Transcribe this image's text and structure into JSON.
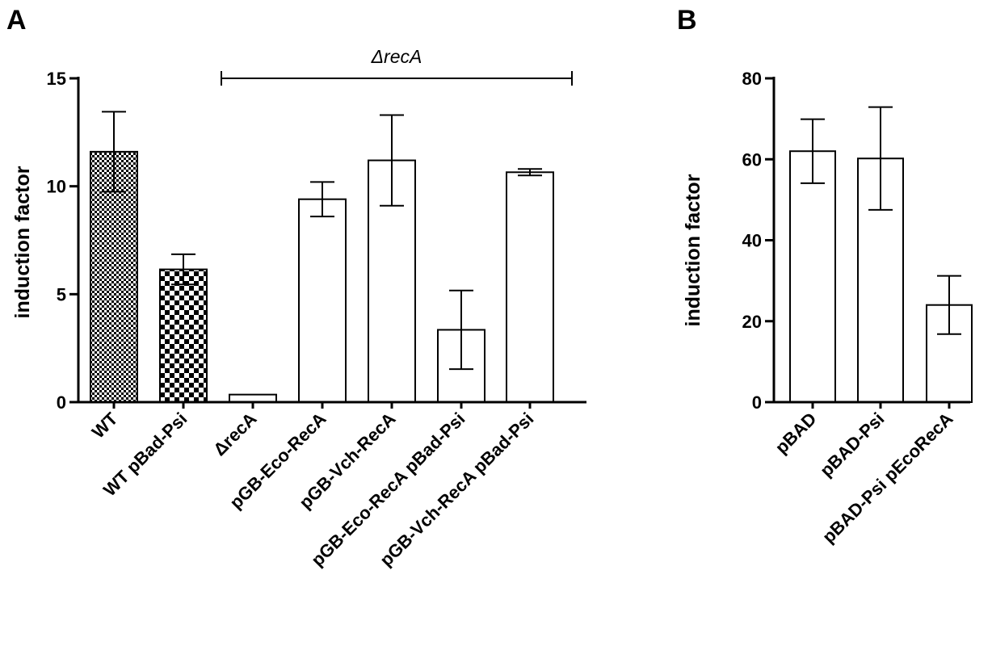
{
  "chart_data": [
    {
      "panel": "A",
      "type": "bar",
      "ylabel": "induction factor",
      "ylim": [
        0,
        15
      ],
      "yticks": [
        0,
        5,
        10,
        15
      ],
      "bracket": {
        "label": "ΔrecA",
        "from_category": 2,
        "to_category": 6
      },
      "categories": [
        "WT",
        "WT pBad-Psi",
        "ΔrecA",
        "pGB-Eco-RecA",
        "pGB-Vch-RecA",
        "pGB-Eco-RecA pBad-Psi",
        "pGB-Vch-RecA pBad-Psi"
      ],
      "values": [
        11.6,
        6.15,
        0.35,
        9.4,
        11.2,
        3.35,
        10.65
      ],
      "errors": [
        1.85,
        0.7,
        0.0,
        0.8,
        2.1,
        1.82,
        0.15
      ],
      "fills": [
        "fine-checker",
        "coarse-checker",
        "white",
        "white",
        "white",
        "white",
        "white"
      ],
      "grid": false,
      "legend": "none"
    },
    {
      "panel": "B",
      "type": "bar",
      "ylabel": "induction factor",
      "ylim": [
        0,
        80
      ],
      "yticks": [
        0,
        20,
        40,
        60,
        80
      ],
      "categories": [
        "pBAD",
        "pBAD-Psi",
        "pBAD-Psi pEcoRecA"
      ],
      "values": [
        62,
        60.2,
        24
      ],
      "errors": [
        7.9,
        12.7,
        7.2
      ],
      "fills": [
        "white",
        "white",
        "white"
      ],
      "grid": false,
      "legend": "none"
    }
  ]
}
